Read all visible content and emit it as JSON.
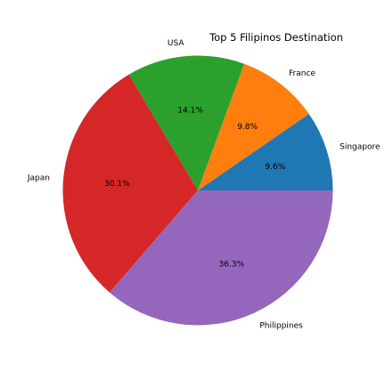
{
  "chart_data": {
    "type": "pie",
    "title": "Top 5 Filipinos Destination",
    "categories": [
      "Singapore",
      "France",
      "USA",
      "Japan",
      "Philippines"
    ],
    "values": [
      9.6,
      9.8,
      14.1,
      30.1,
      36.3
    ],
    "percent_labels": [
      "9.6%",
      "9.8%",
      "14.1%",
      "30.1%",
      "36.3%"
    ],
    "colors": [
      "#1f77b4",
      "#ff7f0e",
      "#2ca02c",
      "#d62728",
      "#9467bd"
    ],
    "start_angle_deg": 0,
    "direction": "counterclockwise"
  }
}
